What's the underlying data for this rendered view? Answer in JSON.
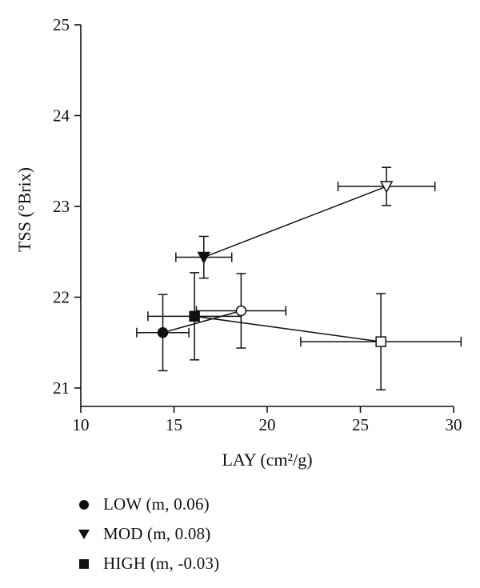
{
  "chart_data": {
    "type": "scatter",
    "xlabel": "LAY (cm²/g)",
    "ylabel": "TSS (°Brix)",
    "xlim": [
      10,
      30
    ],
    "ylim": [
      20.8,
      25
    ],
    "xticks": [
      10,
      15,
      20,
      25,
      30
    ],
    "yticks": [
      21,
      22,
      23,
      24,
      25
    ],
    "grid": false,
    "legend_position": "bottom",
    "series": [
      {
        "name": "LOW (m, 0.06)",
        "marker": "circle",
        "points": [
          {
            "x": 14.4,
            "y": 21.61,
            "xerr": 1.4,
            "yerr": 0.42,
            "filled": true
          },
          {
            "x": 18.6,
            "y": 21.85,
            "xerr": 2.4,
            "yerr": 0.41,
            "filled": false
          }
        ]
      },
      {
        "name": "MOD (m, 0.08)",
        "marker": "triangle-down",
        "points": [
          {
            "x": 16.6,
            "y": 22.44,
            "xerr": 1.5,
            "yerr": 0.23,
            "filled": true
          },
          {
            "x": 26.4,
            "y": 23.22,
            "xerr": 2.6,
            "yerr": 0.21,
            "filled": false
          }
        ]
      },
      {
        "name": "HIGH (m, -0.03)",
        "marker": "square",
        "points": [
          {
            "x": 16.1,
            "y": 21.79,
            "xerr": 2.5,
            "yerr": 0.48,
            "filled": true
          },
          {
            "x": 26.1,
            "y": 21.51,
            "xerr": 4.3,
            "yerr": 0.53,
            "filled": false
          }
        ]
      }
    ]
  },
  "legend": {
    "items": [
      {
        "label": "LOW (m, 0.06)",
        "icon": "filled-circle-icon"
      },
      {
        "label": "MOD (m, 0.08)",
        "icon": "filled-triangle-down-icon"
      },
      {
        "label": "HIGH (m, -0.03)",
        "icon": "filled-square-icon"
      }
    ]
  }
}
